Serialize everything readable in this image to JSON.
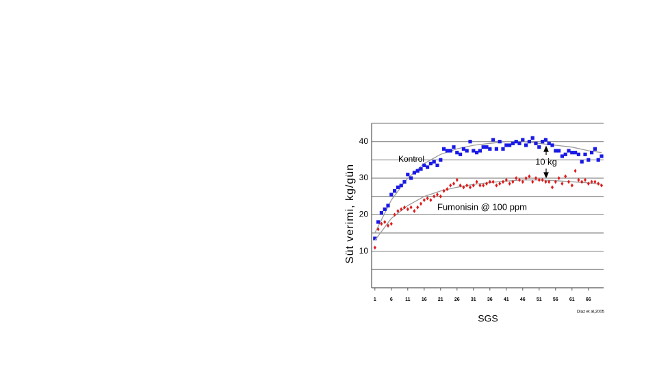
{
  "chart_data": {
    "type": "scatter",
    "y_label": "Süt verimi, kg/gün",
    "x_label": "SGS",
    "source": "Diaz et al,2005",
    "annotation": "10 kg",
    "xlim": [
      0,
      70
    ],
    "xticks": [
      1,
      6,
      11,
      16,
      21,
      26,
      31,
      36,
      41,
      46,
      51,
      56,
      61,
      66
    ],
    "ylim": [
      0,
      45
    ],
    "yticks": [
      10,
      20,
      30,
      40
    ],
    "minor_yticks": [
      5,
      15,
      25,
      35,
      45
    ],
    "grid": true,
    "x": [
      1,
      2,
      3,
      4,
      5,
      6,
      7,
      8,
      9,
      10,
      11,
      12,
      13,
      14,
      15,
      16,
      17,
      18,
      19,
      20,
      21,
      22,
      23,
      24,
      25,
      26,
      27,
      28,
      29,
      30,
      31,
      32,
      33,
      34,
      35,
      36,
      37,
      38,
      39,
      40,
      41,
      42,
      43,
      44,
      45,
      46,
      47,
      48,
      49,
      50,
      51,
      52,
      53,
      54,
      55,
      56,
      57,
      58,
      59,
      60,
      61,
      62,
      63,
      64,
      65,
      66,
      67,
      68,
      69,
      70
    ],
    "trend_x": [
      1,
      6,
      11,
      16,
      21,
      26,
      31,
      36,
      41,
      46,
      51,
      56,
      61,
      66,
      70
    ],
    "trend_color": "#9a9a9a",
    "series": [
      {
        "name": "Kontrol",
        "color": "#1a1ae6",
        "marker": "square",
        "values": [
          13.5,
          18,
          20.5,
          21.5,
          22.5,
          25.5,
          26.5,
          27.5,
          28,
          29,
          31,
          30,
          31.5,
          32,
          32.5,
          33.5,
          33,
          34,
          34.5,
          33.5,
          35,
          38,
          37.5,
          37.5,
          38.5,
          37,
          36.5,
          38,
          37.5,
          40,
          37.5,
          37,
          37.5,
          38.5,
          38.5,
          38,
          40.5,
          38,
          40,
          38,
          39,
          39,
          39.5,
          40,
          39.5,
          40.5,
          39,
          40,
          41,
          39.5,
          38.5,
          40,
          40.5,
          39.5,
          39,
          37.5,
          37.5,
          36,
          36.5,
          37.5,
          37,
          37,
          36.5,
          34.5,
          36.5,
          35,
          37,
          38,
          35,
          36
        ],
        "trend": [
          15,
          24,
          30,
          34,
          36.5,
          38,
          39,
          39.5,
          40,
          40,
          39.5,
          39,
          38.5,
          37.5,
          37
        ]
      },
      {
        "name": "Fumonisin @ 100 ppm",
        "color": "#e01a1a",
        "marker": "diamond",
        "values": [
          11,
          16,
          17.5,
          18,
          17,
          17.5,
          20,
          21,
          21.5,
          22,
          21.5,
          22,
          21,
          22,
          23,
          24,
          24.5,
          24,
          25,
          25.5,
          25,
          26.5,
          27,
          28,
          28.5,
          29.5,
          28,
          27.5,
          28,
          27.5,
          28,
          29,
          28,
          28,
          28.5,
          29,
          29,
          28,
          28.5,
          29,
          29.5,
          28.5,
          29,
          30,
          29.5,
          29,
          30,
          30.5,
          29,
          30,
          29.5,
          29.5,
          29,
          29,
          27.5,
          29,
          30,
          28.5,
          30.5,
          29,
          28,
          32,
          29.5,
          29,
          29.5,
          28.5,
          29,
          29,
          28.5,
          28
        ],
        "trend": [
          13,
          19,
          22.5,
          25,
          26.5,
          27.5,
          28.3,
          28.8,
          29.2,
          29.5,
          29.5,
          29.3,
          29,
          28.7,
          28.3
        ]
      }
    ]
  }
}
